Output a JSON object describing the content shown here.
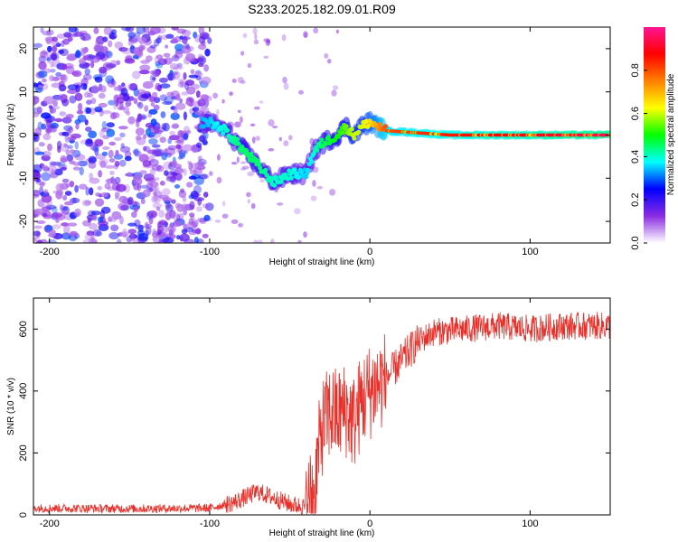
{
  "title": "S233.2025.182.09.01.R09",
  "chart_data": [
    {
      "type": "heatmap",
      "xlabel": "Height of straight line (km)",
      "ylabel": "Frequency (Hz)",
      "xlim": [
        -210,
        150
      ],
      "ylim": [
        -25,
        25
      ],
      "xticks": [
        -200,
        -100,
        0,
        100
      ],
      "yticks": [
        -20,
        -10,
        0,
        10,
        20
      ],
      "colorbar": {
        "label": "Normalized spectral amplitude",
        "range": [
          0,
          1
        ],
        "ticks": [
          "0.0",
          "0.2",
          "0.4",
          "0.6",
          "0.8"
        ],
        "tick_values": [
          0,
          0.2,
          0.4,
          0.6,
          0.8
        ],
        "colors": [
          "#ffffff",
          "#8a2be2",
          "#0000ff",
          "#00ffff",
          "#00ff00",
          "#ffff00",
          "#ff8000",
          "#ff0000",
          "#ff1493"
        ]
      },
      "ridge": {
        "x": [
          -210,
          -100,
          -90,
          -80,
          -70,
          -60,
          -50,
          -40,
          -35,
          -30,
          -20,
          -15,
          -10,
          -5,
          0,
          10,
          50,
          100,
          150
        ],
        "frequency": [
          1,
          3,
          1,
          -3,
          -7,
          -11,
          -9,
          -9,
          -4,
          -2,
          0,
          2,
          0,
          2,
          3,
          1,
          0,
          0,
          0
        ],
        "amplitude": [
          0.1,
          0.35,
          0.4,
          0.45,
          0.45,
          0.4,
          0.4,
          0.35,
          0.4,
          0.45,
          0.5,
          0.55,
          0.6,
          0.6,
          0.65,
          0.8,
          0.85,
          0.9,
          0.95
        ]
      },
      "noise_region_x": [
        -210,
        -100
      ]
    },
    {
      "type": "line",
      "xlabel": "Height of straight line (km)",
      "ylabel": "SNR (10 * v/v)",
      "xlim": [
        -210,
        150
      ],
      "ylim": [
        0,
        700
      ],
      "xticks": [
        -200,
        -100,
        0,
        100
      ],
      "yticks": [
        0,
        200,
        400,
        600
      ],
      "color": "#e8302a",
      "series": [
        {
          "x": [
            -210,
            -150,
            -100,
            -85,
            -70,
            -60,
            -50,
            -40,
            -35,
            -30,
            -25,
            -20,
            -15,
            -10,
            -5,
            0,
            10,
            20,
            30,
            40,
            60,
            80,
            100,
            120,
            150
          ],
          "values": [
            22,
            20,
            22,
            40,
            75,
            55,
            35,
            25,
            80,
            280,
            330,
            320,
            340,
            300,
            370,
            400,
            440,
            500,
            560,
            590,
            600,
            610,
            600,
            610,
            610
          ]
        }
      ]
    }
  ]
}
